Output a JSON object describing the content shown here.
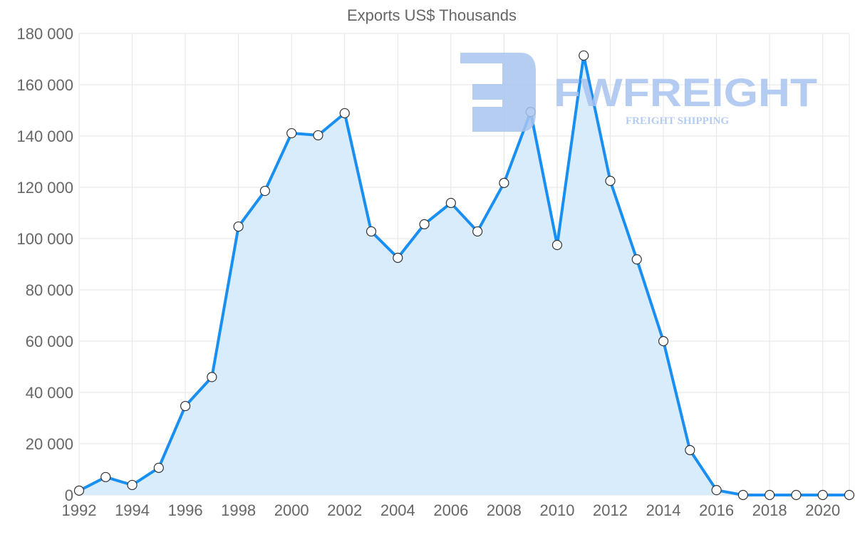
{
  "watermark": {
    "brand": "FWFREIGHT",
    "tagline": "FREIGHT SHIPPING"
  },
  "colors": {
    "line": "#1a8ff2",
    "fill": "#d9ecfc",
    "grid": "#e5e5e5",
    "watermark": "#a9c4f0"
  },
  "chart_data": {
    "type": "area",
    "title": "Exports US$ Thousands",
    "xlabel": "",
    "ylabel": "",
    "x": [
      1992,
      1993,
      1994,
      1995,
      1996,
      1997,
      1998,
      1999,
      2000,
      2001,
      2002,
      2003,
      2004,
      2005,
      2006,
      2007,
      2008,
      2009,
      2010,
      2011,
      2012,
      2013,
      2014,
      2015,
      2016,
      2017,
      2018,
      2019,
      2020,
      2021
    ],
    "series": [
      {
        "name": "Exports US$ Thousands",
        "values": [
          1700,
          7000,
          3900,
          10600,
          34700,
          46000,
          104700,
          118600,
          141100,
          140300,
          148900,
          102800,
          92500,
          105600,
          113900,
          102800,
          121700,
          149400,
          97500,
          171400,
          122500,
          91900,
          60000,
          17500,
          1900,
          0,
          0,
          0,
          0,
          0
        ]
      }
    ],
    "ylim": [
      0,
      180000
    ],
    "yticks": [
      0,
      20000,
      40000,
      60000,
      80000,
      100000,
      120000,
      140000,
      160000,
      180000
    ],
    "ytick_labels": [
      "0",
      "20 000",
      "40 000",
      "60 000",
      "80 000",
      "100 000",
      "120 000",
      "140 000",
      "160 000",
      "180 000"
    ],
    "xticks": [
      1992,
      1994,
      1996,
      1998,
      2000,
      2002,
      2004,
      2006,
      2008,
      2010,
      2012,
      2014,
      2016,
      2018,
      2020
    ],
    "xtick_labels": [
      "1992",
      "1994",
      "1996",
      "1998",
      "2000",
      "2002",
      "2004",
      "2006",
      "2008",
      "2010",
      "2012",
      "2014",
      "2016",
      "2018",
      "2020"
    ],
    "grid": true,
    "legend": "none"
  }
}
